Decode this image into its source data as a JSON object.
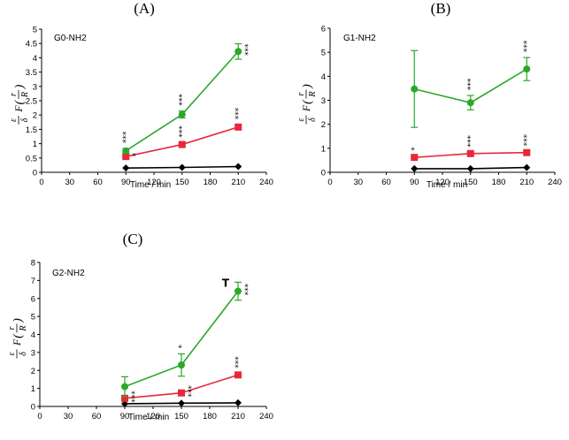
{
  "chart_data": [
    {
      "type": "line",
      "panel_label": "(A)",
      "title": "G0-NH2",
      "xlabel": "Time / min",
      "ylabel": {
        "eps": "ε",
        "delta": "δ",
        "F": "F",
        "r": "r",
        "R": "R",
        "open": "(",
        "close": ")"
      },
      "xlim": [
        0,
        240
      ],
      "xticks": [
        0,
        30,
        60,
        90,
        120,
        150,
        180,
        210,
        240
      ],
      "ylim": [
        0,
        5
      ],
      "yticks": [
        "0",
        "0.5",
        "1",
        "1.5",
        "2",
        "2.5",
        "3",
        "3.5",
        "4",
        "4.5",
        "5"
      ],
      "x": [
        90,
        150,
        210
      ],
      "series": [
        {
          "name": "green",
          "color": "#2aa82a",
          "marker": "circle",
          "values": [
            0.75,
            2.02,
            4.22
          ],
          "err": [
            0.08,
            0.12,
            0.27
          ]
        },
        {
          "name": "red",
          "color": "#e8283a",
          "marker": "square",
          "values": [
            0.55,
            0.97,
            1.58
          ],
          "err": [
            0.05,
            0.06,
            0.08
          ]
        },
        {
          "name": "black",
          "color": "#000000",
          "marker": "diamond",
          "values": [
            0.15,
            0.17,
            0.2
          ],
          "err": [
            0.0,
            0.0,
            0.0
          ]
        }
      ],
      "annotations": [
        {
          "x": 90,
          "y": 0.75,
          "text": "***",
          "placement": "above",
          "series": "green"
        },
        {
          "x": 90,
          "y": 0.55,
          "text": "*",
          "placement": "right",
          "series": "red"
        },
        {
          "x": 150,
          "y": 2.02,
          "text": "***",
          "placement": "above",
          "series": "green"
        },
        {
          "x": 150,
          "y": 0.97,
          "text": "***",
          "placement": "above",
          "series": "red"
        },
        {
          "x": 210,
          "y": 4.22,
          "text": "***",
          "placement": "right",
          "series": "green"
        },
        {
          "x": 210,
          "y": 1.58,
          "text": "***",
          "placement": "above",
          "series": "red"
        }
      ]
    },
    {
      "type": "line",
      "panel_label": "(B)",
      "title": "G1-NH2",
      "xlabel": "Time / min",
      "ylabel": {
        "eps": "ε",
        "delta": "δ",
        "F": "F",
        "r": "r",
        "R": "R",
        "open": "(",
        "close": ")"
      },
      "xlim": [
        0,
        240
      ],
      "xticks": [
        0,
        30,
        60,
        90,
        120,
        150,
        180,
        210,
        240
      ],
      "ylim": [
        0,
        6
      ],
      "yticks": [
        "0",
        "1",
        "2",
        "3",
        "4",
        "5",
        "6"
      ],
      "x": [
        90,
        150,
        210
      ],
      "series": [
        {
          "name": "green",
          "color": "#2aa82a",
          "marker": "circle",
          "values": [
            3.47,
            2.9,
            4.3
          ],
          "err": [
            1.6,
            0.3,
            0.48
          ]
        },
        {
          "name": "red",
          "color": "#e8283a",
          "marker": "square",
          "values": [
            0.62,
            0.78,
            0.82
          ],
          "err": [
            0.05,
            0.05,
            0.05
          ]
        },
        {
          "name": "black",
          "color": "#000000",
          "marker": "diamond",
          "values": [
            0.15,
            0.15,
            0.2
          ],
          "err": [
            0.0,
            0.0,
            0.0
          ]
        }
      ],
      "annotations": [
        {
          "x": 90,
          "y": 0.62,
          "text": "*",
          "placement": "above",
          "series": "red"
        },
        {
          "x": 150,
          "y": 2.9,
          "text": "***",
          "placement": "above",
          "series": "green"
        },
        {
          "x": 150,
          "y": 0.78,
          "text": "***",
          "placement": "above",
          "series": "red"
        },
        {
          "x": 210,
          "y": 4.3,
          "text": "***",
          "placement": "above",
          "series": "green"
        },
        {
          "x": 210,
          "y": 0.82,
          "text": "***",
          "placement": "above",
          "series": "red"
        }
      ]
    },
    {
      "type": "line",
      "panel_label": "(C)",
      "title": "G2-NH2",
      "xlabel": "Time / min",
      "ylabel": {
        "eps": "ε",
        "delta": "δ",
        "F": "F",
        "r": "r",
        "R": "R",
        "open": "(",
        "close": ")"
      },
      "xlim": [
        0,
        240
      ],
      "xticks": [
        0,
        30,
        60,
        90,
        120,
        150,
        180,
        210,
        240
      ],
      "ylim": [
        0,
        8
      ],
      "yticks": [
        "0",
        "1",
        "2",
        "3",
        "4",
        "5",
        "6",
        "7",
        "8"
      ],
      "x": [
        90,
        150,
        210
      ],
      "series": [
        {
          "name": "green",
          "color": "#2aa82a",
          "marker": "circle",
          "values": [
            1.1,
            2.3,
            6.4
          ],
          "err": [
            0.55,
            0.62,
            0.5
          ]
        },
        {
          "name": "red",
          "color": "#e8283a",
          "marker": "square",
          "values": [
            0.45,
            0.75,
            1.75
          ],
          "err": [
            0.05,
            0.05,
            0.08
          ]
        },
        {
          "name": "black",
          "color": "#000000",
          "marker": "diamond",
          "values": [
            0.15,
            0.18,
            0.2
          ],
          "err": [
            0.0,
            0.0,
            0.0
          ]
        }
      ],
      "annotations": [
        {
          "x": 90,
          "y": 0.45,
          "text": "***",
          "placement": "right",
          "series": "red"
        },
        {
          "x": 150,
          "y": 2.3,
          "text": "*",
          "placement": "above",
          "series": "green"
        },
        {
          "x": 150,
          "y": 0.75,
          "text": "***",
          "placement": "right",
          "series": "red"
        },
        {
          "x": 210,
          "y": 6.4,
          "text": "***",
          "placement": "right",
          "series": "green"
        },
        {
          "x": 210,
          "y": 6.4,
          "text": "T",
          "placement": "left",
          "series": "green"
        },
        {
          "x": 210,
          "y": 1.75,
          "text": "***",
          "placement": "above",
          "series": "red"
        }
      ]
    }
  ]
}
